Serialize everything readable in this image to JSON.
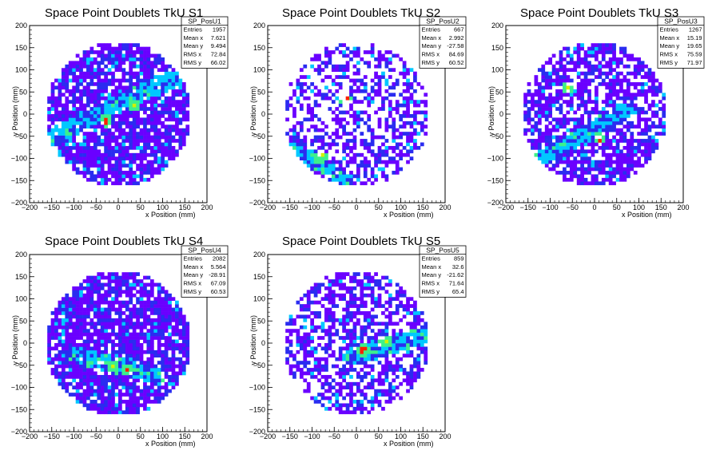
{
  "chart_data": [
    {
      "type": "heatmap",
      "title": "Space Point Doublets TkU S1",
      "xlabel": "x Position (mm)",
      "ylabel": "y Position (mm)",
      "xlim": [
        -200,
        200
      ],
      "ylim": [
        -200,
        200
      ],
      "xticks": [
        "−200",
        "−150",
        "−100",
        "−50",
        "0",
        "50",
        "100",
        "150",
        "200"
      ],
      "yticks": [
        "200",
        "150",
        "100",
        "50",
        "0",
        "−50",
        "−100",
        "−150",
        "−200"
      ],
      "stats": {
        "name": "SP_PosU1",
        "rows": [
          {
            "label": "Entries",
            "value": "1957"
          },
          {
            "label": "Mean x",
            "value": "7.621"
          },
          {
            "label": "Mean y",
            "value": "9.494"
          },
          {
            "label": "RMS x",
            "value": "72.84"
          },
          {
            "label": "RMS y",
            "value": "66.02"
          }
        ]
      },
      "pattern": {
        "occupancy": 0.82,
        "band": [
          [
            -165,
            -60
          ],
          [
            120,
            80
          ]
        ],
        "bandWidth": 20,
        "hot": [
          [
            -30,
            -15
          ],
          [
            35,
            20
          ]
        ]
      }
    },
    {
      "type": "heatmap",
      "title": "Space Point Doublets TkU S2",
      "xlabel": "x Position (mm)",
      "ylabel": "y Position (mm)",
      "xlim": [
        -200,
        200
      ],
      "ylim": [
        -200,
        200
      ],
      "xticks": [
        "−200",
        "−150",
        "−100",
        "−50",
        "0",
        "50",
        "100",
        "150",
        "200"
      ],
      "yticks": [
        "200",
        "150",
        "100",
        "50",
        "0",
        "−50",
        "−100",
        "−150",
        "−200"
      ],
      "stats": {
        "name": "SP_PosU2",
        "rows": [
          {
            "label": "Entries",
            "value": "667"
          },
          {
            "label": "Mean x",
            "value": "2.992"
          },
          {
            "label": "Mean y",
            "value": "-27.58"
          },
          {
            "label": "RMS x",
            "value": "84.69"
          },
          {
            "label": "RMS y",
            "value": "60.52"
          }
        ]
      },
      "pattern": {
        "occupancy": 0.5,
        "band": [
          [
            -140,
            -80
          ],
          [
            -20,
            -150
          ]
        ],
        "bandWidth": 15,
        "hot": [
          [
            -25,
            35
          ],
          [
            -80,
            -95
          ]
        ]
      }
    },
    {
      "type": "heatmap",
      "title": "Space Point Doublets TkU S3",
      "xlabel": "x Position (mm)",
      "ylabel": "y Position (mm)",
      "xlim": [
        -200,
        200
      ],
      "ylim": [
        -200,
        200
      ],
      "xticks": [
        "−200",
        "−150",
        "−100",
        "−50",
        "0",
        "50",
        "100",
        "150",
        "200"
      ],
      "yticks": [
        "200",
        "150",
        "100",
        "50",
        "0",
        "−50",
        "−100",
        "−150",
        "−200"
      ],
      "stats": {
        "name": "SP_PosU3",
        "rows": [
          {
            "label": "Entries",
            "value": "1267"
          },
          {
            "label": "Mean x",
            "value": "15.19"
          },
          {
            "label": "Mean y",
            "value": "19.65"
          },
          {
            "label": "RMS x",
            "value": "75.59"
          },
          {
            "label": "RMS y",
            "value": "71.97"
          }
        ]
      },
      "pattern": {
        "occupancy": 0.68,
        "band": [
          [
            -120,
            -100
          ],
          [
            70,
            10
          ]
        ],
        "bandWidth": 18,
        "hot": [
          [
            10,
            -55
          ],
          [
            -60,
            60
          ]
        ]
      }
    },
    {
      "type": "heatmap",
      "title": "Space Point Doublets TkU S4",
      "xlabel": "x Position (mm)",
      "ylabel": "y Position (mm)",
      "xlim": [
        -200,
        200
      ],
      "ylim": [
        -200,
        200
      ],
      "xticks": [
        "−200",
        "−150",
        "−100",
        "−50",
        "0",
        "50",
        "100",
        "150",
        "200"
      ],
      "yticks": [
        "200",
        "150",
        "100",
        "50",
        "0",
        "−50",
        "−100",
        "−150",
        "−200"
      ],
      "stats": {
        "name": "SP_PosU4",
        "rows": [
          {
            "label": "Entries",
            "value": "2082"
          },
          {
            "label": "Mean x",
            "value": "5.564"
          },
          {
            "label": "Mean y",
            "value": "-28.91"
          },
          {
            "label": "RMS x",
            "value": "67.09"
          },
          {
            "label": "RMS y",
            "value": "60.53"
          }
        ]
      },
      "pattern": {
        "occupancy": 0.85,
        "band": [
          [
            -100,
            -25
          ],
          [
            90,
            -75
          ]
        ],
        "bandWidth": 18,
        "hot": [
          [
            20,
            -60
          ],
          [
            -10,
            -50
          ]
        ]
      }
    },
    {
      "type": "heatmap",
      "title": "Space Point Doublets TkU S5",
      "xlabel": "x Position (mm)",
      "ylabel": "y Position (mm)",
      "xlim": [
        -200,
        200
      ],
      "ylim": [
        -200,
        200
      ],
      "xticks": [
        "−200",
        "−150",
        "−100",
        "−50",
        "0",
        "50",
        "100",
        "150",
        "200"
      ],
      "yticks": [
        "200",
        "150",
        "100",
        "50",
        "0",
        "−50",
        "−100",
        "−150",
        "−200"
      ],
      "stats": {
        "name": "SP_PosU5",
        "rows": [
          {
            "label": "Entries",
            "value": "859"
          },
          {
            "label": "Mean x",
            "value": "32.6"
          },
          {
            "label": "Mean y",
            "value": "-21.62"
          },
          {
            "label": "RMS x",
            "value": "71.64"
          },
          {
            "label": "RMS y",
            "value": "65.4"
          }
        ]
      },
      "pattern": {
        "occupancy": 0.55,
        "band": [
          [
            -10,
            -30
          ],
          [
            160,
            20
          ]
        ],
        "bandWidth": 20,
        "hot": [
          [
            15,
            -15
          ],
          [
            70,
            5
          ]
        ]
      }
    }
  ],
  "palette": [
    "#6a00ff",
    "#2a2cf0",
    "#00c8ff",
    "#3cf08c",
    "#d2f000",
    "#ff2000"
  ]
}
